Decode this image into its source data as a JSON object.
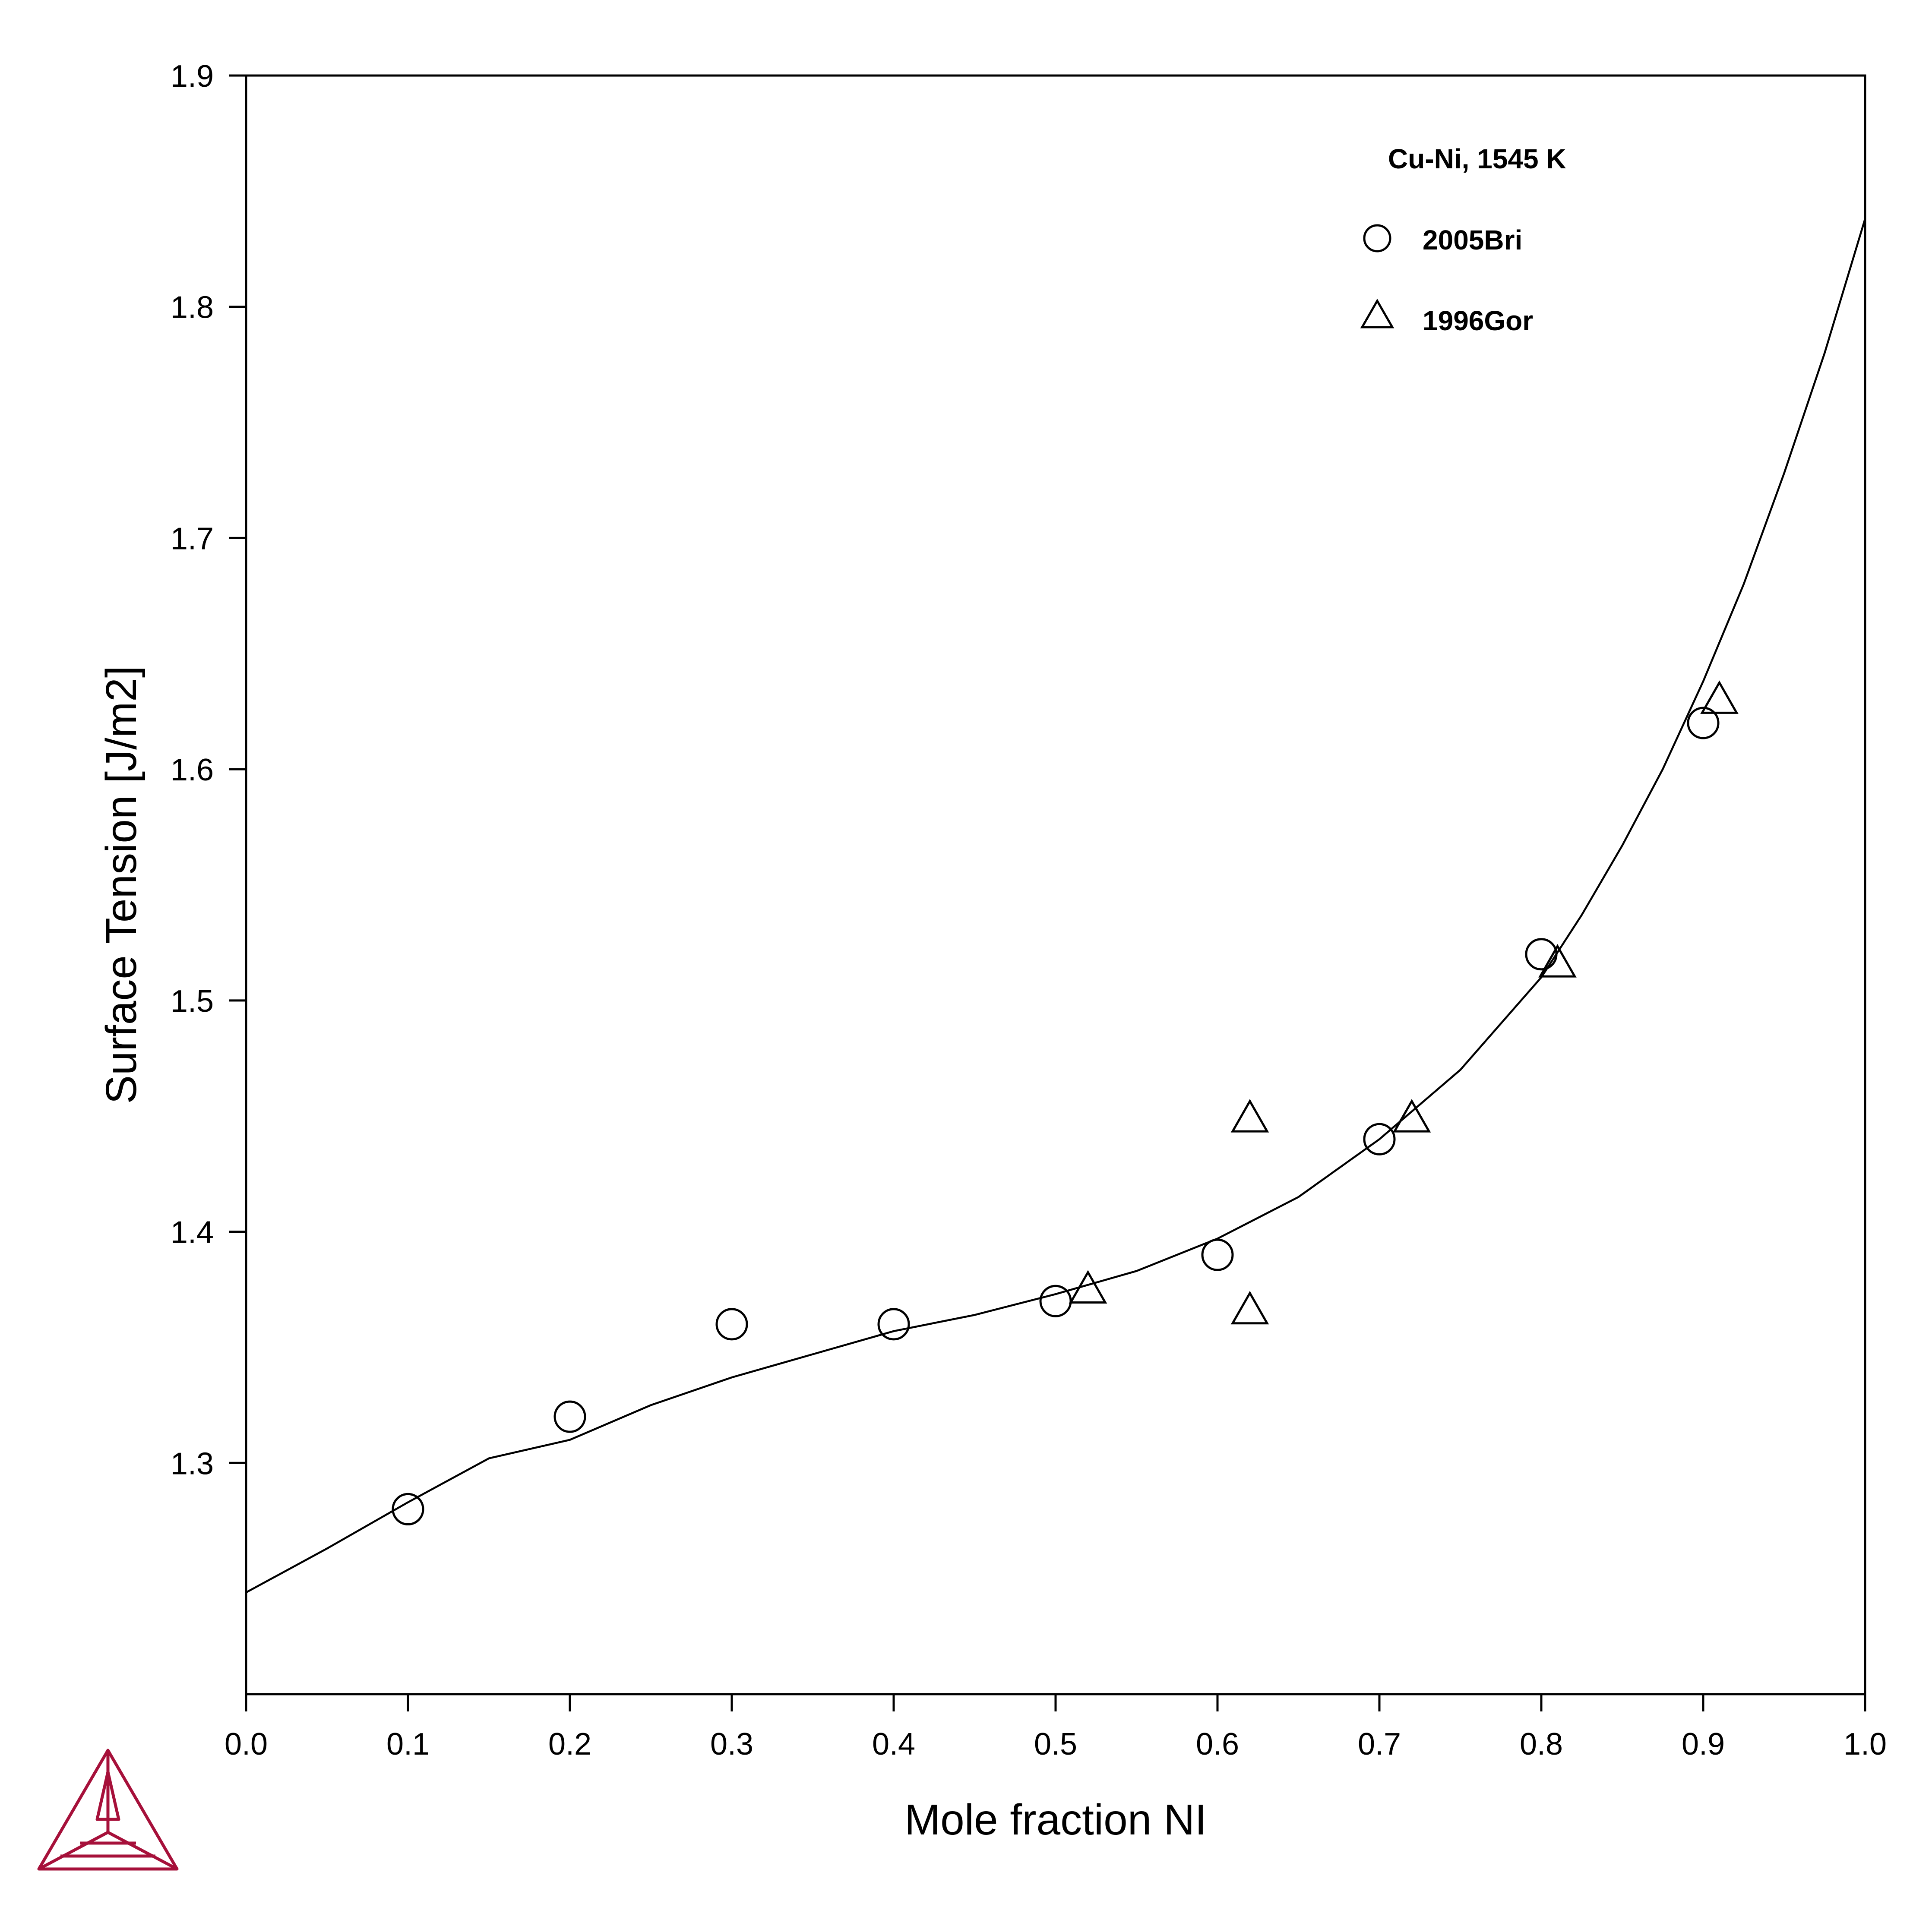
{
  "chart_data": {
    "type": "scatter",
    "title": "Cu-Ni, 1545 K",
    "xlabel": "Mole fraction NI",
    "ylabel": "Surface Tension [J/m2]",
    "xlim": [
      0.0,
      1.0
    ],
    "ylim": [
      1.2,
      1.9
    ],
    "xticks": [
      "0.0",
      "0.1",
      "0.2",
      "0.3",
      "0.4",
      "0.5",
      "0.6",
      "0.7",
      "0.8",
      "0.9",
      "1.0"
    ],
    "yticks": [
      "1.3",
      "1.4",
      "1.5",
      "1.6",
      "1.7",
      "1.8",
      "1.9"
    ],
    "grid": false,
    "legend_position": "top-right",
    "curve": {
      "x": [
        0.0,
        0.05,
        0.1,
        0.15,
        0.2,
        0.25,
        0.3,
        0.35,
        0.4,
        0.45,
        0.5,
        0.55,
        0.6,
        0.65,
        0.7,
        0.75,
        0.8,
        0.825,
        0.85,
        0.875,
        0.9,
        0.925,
        0.95,
        0.975,
        1.0
      ],
      "y": [
        1.244,
        1.263,
        1.283,
        1.302,
        1.31,
        1.325,
        1.337,
        1.347,
        1.357,
        1.364,
        1.373,
        1.383,
        1.397,
        1.415,
        1.44,
        1.47,
        1.51,
        1.537,
        1.567,
        1.6,
        1.638,
        1.68,
        1.728,
        1.78,
        1.838
      ]
    },
    "series": [
      {
        "name": "2005Bri",
        "marker": "circle",
        "x": [
          0.1,
          0.2,
          0.3,
          0.4,
          0.5,
          0.6,
          0.7,
          0.8,
          0.9
        ],
        "y": [
          1.28,
          1.32,
          1.36,
          1.36,
          1.37,
          1.39,
          1.44,
          1.52,
          1.62
        ]
      },
      {
        "name": "1996Gor",
        "marker": "triangle",
        "x": [
          0.52,
          0.62,
          0.62,
          0.72,
          0.81,
          0.91
        ],
        "y": [
          1.375,
          1.449,
          1.366,
          1.449,
          1.516,
          1.63
        ]
      }
    ]
  },
  "logo": {
    "name": "thermo-calc-logo",
    "color": "#a6103a"
  }
}
